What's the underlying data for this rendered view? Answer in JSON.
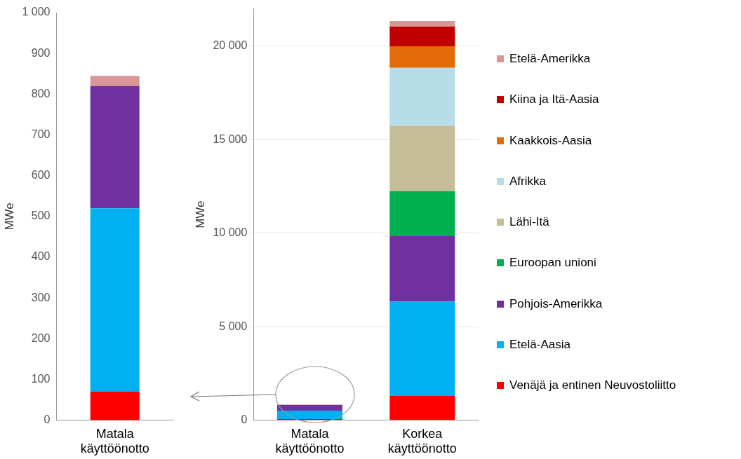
{
  "chart_data": [
    {
      "type": "bar",
      "stacked": true,
      "ylabel": "MWe",
      "categories": [
        "Matala käyttöönotto"
      ],
      "ylim": [
        0,
        1000
      ],
      "yticks": [
        0,
        100,
        200,
        300,
        400,
        500,
        600,
        700,
        800,
        900,
        {
          "value": 1000,
          "label": "1 000"
        }
      ],
      "grid": false,
      "legend": false,
      "series": [
        {
          "color": "#ff0000",
          "values": [
            70
          ]
        },
        {
          "color": "#00b0f0",
          "values": [
            450
          ]
        },
        {
          "color": "#7030a0",
          "values": [
            300
          ]
        },
        {
          "color": "#da9694",
          "values": [
            25
          ]
        }
      ]
    },
    {
      "type": "bar",
      "stacked": true,
      "ylabel": "MWe",
      "categories": [
        "Matala käyttöönotto",
        "Korkea käyttöönotto"
      ],
      "ylim": [
        0,
        22000
      ],
      "yticks": [
        0,
        {
          "value": 5000,
          "label": "5 000"
        },
        {
          "value": 10000,
          "label": "10 000"
        },
        {
          "value": 15000,
          "label": "15 000"
        },
        {
          "value": 20000,
          "label": "20 000"
        }
      ],
      "grid": "y",
      "legend": "right",
      "series": [
        {
          "name": "Venäjä ja entinen Neuvostoliitto",
          "color": "#ff0000",
          "values": [
            70,
            1300
          ]
        },
        {
          "name": "Etelä-Aasia",
          "color": "#00b0f0",
          "values": [
            450,
            5050
          ]
        },
        {
          "name": "Pohjois-Amerikka",
          "color": "#7030a0",
          "values": [
            300,
            3500
          ]
        },
        {
          "name": "Euroopan unioni",
          "color": "#00b050",
          "values": [
            0,
            2400
          ]
        },
        {
          "name": "Lähi-Itä",
          "color": "#c4bd97",
          "values": [
            0,
            3500
          ]
        },
        {
          "name": "Afrikka",
          "color": "#b7dde8",
          "values": [
            0,
            3100
          ]
        },
        {
          "name": "Kaakkois-Aasia",
          "color": "#e36c09",
          "values": [
            0,
            1150
          ]
        },
        {
          "name": "Kiina ja Itä-Aasia",
          "color": "#c00000",
          "values": [
            0,
            1050
          ]
        },
        {
          "name": "Etelä-Amerikka",
          "color": "#da9694",
          "values": [
            25,
            300
          ]
        }
      ]
    }
  ]
}
